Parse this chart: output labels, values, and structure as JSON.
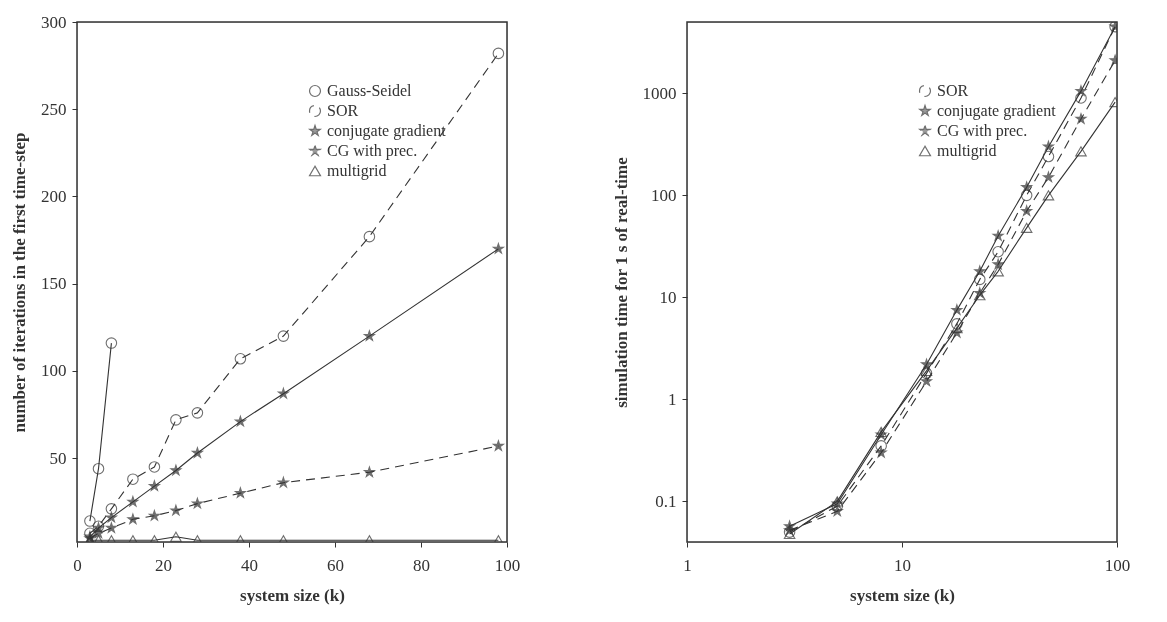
{
  "chart_data": [
    {
      "type": "line",
      "xlabel": "system size (k)",
      "ylabel": "number of iterations in the first time-step",
      "x": [
        3,
        5,
        8,
        13,
        18,
        23,
        28,
        38,
        48,
        68,
        98
      ],
      "xlim": [
        0,
        100
      ],
      "xticks": [
        0,
        20,
        40,
        60,
        80,
        100
      ],
      "ylim": [
        2,
        300
      ],
      "yticks": [
        50,
        100,
        150,
        200,
        250,
        300
      ],
      "grid": false,
      "legend": "top right",
      "series": [
        {
          "name": "Gauss-Seidel",
          "color": "#333333",
          "marker": "circle",
          "line_style": "solid",
          "x": [
            3,
            5,
            8
          ],
          "values": [
            14,
            44,
            116
          ]
        },
        {
          "name": "SOR",
          "color": "#333333",
          "marker": "circle",
          "line_style": "dashed",
          "values": [
            7,
            11,
            21,
            38,
            45,
            72,
            76,
            107,
            120,
            177,
            282
          ]
        },
        {
          "name": "conjugate gradient",
          "color": "#333333",
          "marker": "star",
          "line_style": "solid",
          "values": [
            5,
            10,
            16,
            25,
            34,
            43,
            53,
            71,
            87,
            120,
            170
          ]
        },
        {
          "name": "CG with prec.",
          "color": "#333333",
          "marker": "star",
          "line_style": "dashed",
          "values": [
            4,
            7,
            10,
            15,
            17,
            20,
            24,
            30,
            36,
            42,
            57
          ]
        },
        {
          "name": "multigrid",
          "color": "#333333",
          "marker": "triangle",
          "line_style": "solid",
          "values": [
            3,
            3,
            3,
            3,
            3,
            5,
            3,
            3,
            3,
            3,
            3
          ]
        }
      ]
    },
    {
      "type": "line",
      "xlabel": "system size (k)",
      "ylabel": "simulation time for 1 s of real-time",
      "x": [
        3,
        5,
        8,
        13,
        18,
        23,
        28,
        38,
        48,
        68,
        98
      ],
      "xlim": [
        1,
        100
      ],
      "xticks": [
        1,
        10,
        100
      ],
      "ylim": [
        0.04,
        5000
      ],
      "yticks": [
        0.1,
        1,
        10,
        100,
        1000
      ],
      "log": "xy",
      "grid": false,
      "legend": "top right",
      "series": [
        {
          "name": "SOR",
          "color": "#333333",
          "marker": "circle",
          "line_style": "dashed",
          "values": [
            0.05,
            0.09,
            0.35,
            1.8,
            5.5,
            15,
            28,
            100,
            240,
            900,
            4500
          ]
        },
        {
          "name": "conjugate gradient",
          "color": "#333333",
          "marker": "star",
          "line_style": "solid",
          "values": [
            0.057,
            0.095,
            0.45,
            2.2,
            7.5,
            18,
            40,
            120,
            300,
            1050,
            4500
          ]
        },
        {
          "name": "CG with prec.",
          "color": "#333333",
          "marker": "star",
          "line_style": "dashed",
          "values": [
            0.052,
            0.08,
            0.3,
            1.5,
            4.5,
            11,
            21,
            70,
            150,
            560,
            2100
          ]
        },
        {
          "name": "multigrid",
          "color": "#333333",
          "marker": "triangle",
          "line_style": "solid",
          "values": [
            0.048,
            0.1,
            0.48,
            1.9,
            5,
            10.5,
            18,
            48,
            100,
            270,
            820
          ]
        }
      ]
    }
  ]
}
